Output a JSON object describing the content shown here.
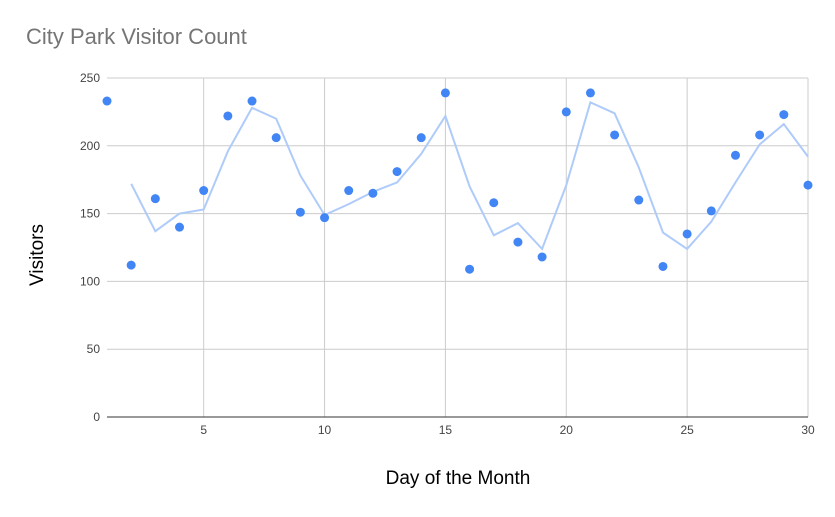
{
  "chart_data": {
    "type": "scatter",
    "title": "City Park Visitor Count",
    "xlabel": "Day of the Month",
    "ylabel": "Visitors",
    "xlim": [
      1,
      30
    ],
    "ylim": [
      0,
      250
    ],
    "x_ticks": [
      5,
      10,
      15,
      20,
      25,
      30
    ],
    "y_ticks": [
      0,
      50,
      100,
      150,
      200,
      250
    ],
    "grid": true,
    "colors": {
      "points": "#4285f4",
      "trend": "#aecbfa",
      "grid": "#cccccc",
      "axis": "#333333"
    },
    "series": [
      {
        "type": "scatter",
        "x": [
          1,
          2,
          3,
          4,
          5,
          6,
          7,
          8,
          9,
          10,
          11,
          12,
          13,
          14,
          15,
          16,
          17,
          18,
          19,
          20,
          21,
          22,
          23,
          24,
          25,
          26,
          27,
          28,
          29,
          30
        ],
        "values": [
          233,
          112,
          161,
          140,
          167,
          222,
          233,
          206,
          151,
          147,
          167,
          165,
          181,
          206,
          239,
          109,
          158,
          129,
          118,
          225,
          239,
          208,
          160,
          111,
          135,
          152,
          193,
          208,
          223,
          171
        ]
      },
      {
        "type": "line",
        "x": [
          2,
          3,
          4,
          5,
          6,
          7,
          8,
          9,
          10,
          11,
          12,
          13,
          14,
          15,
          16,
          17,
          18,
          19,
          20,
          21,
          22,
          23,
          24,
          25,
          26,
          27,
          28,
          29,
          30
        ],
        "values": [
          172,
          137,
          150,
          153,
          196,
          228,
          220,
          178,
          149,
          157,
          166,
          173,
          194,
          222,
          170,
          134,
          143,
          124,
          171,
          232,
          224,
          184,
          136,
          124,
          144,
          173,
          201,
          216,
          192
        ]
      }
    ]
  }
}
